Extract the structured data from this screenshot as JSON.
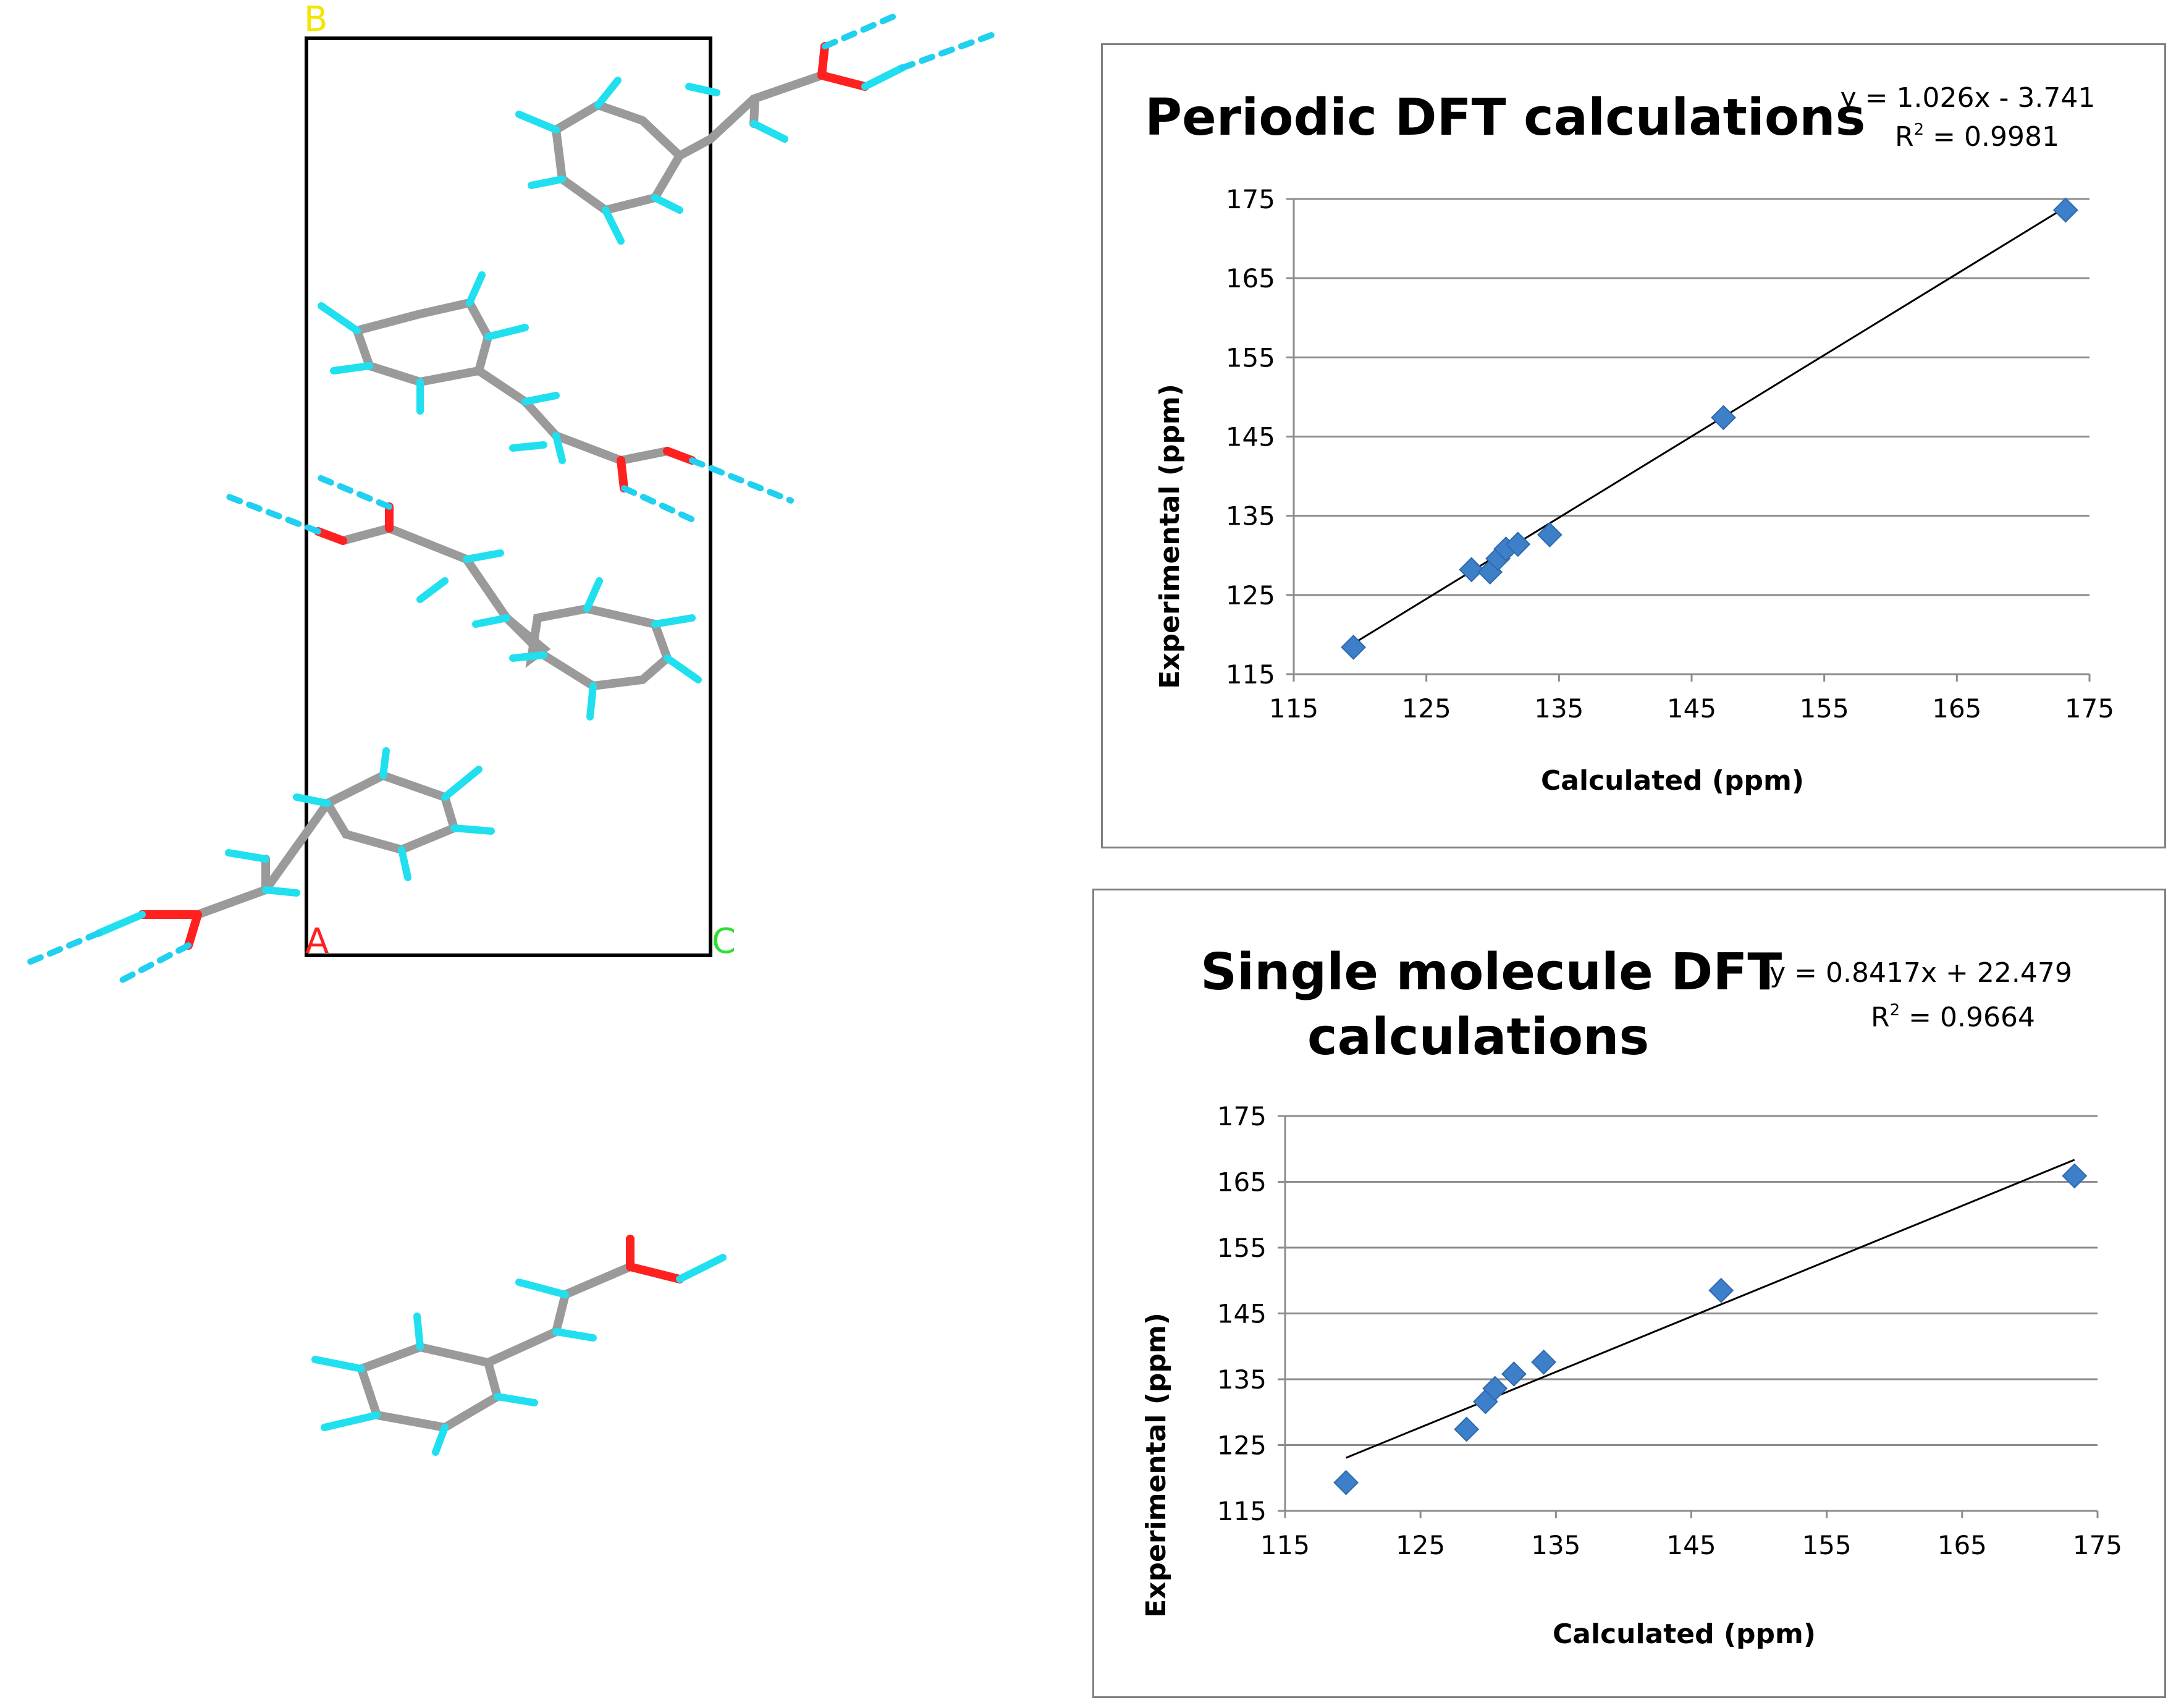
{
  "structure": {
    "axis_labels": {
      "b": "B",
      "a": "A",
      "c": "C"
    },
    "colors": {
      "carbon": "#999999",
      "hydrogen": "#20e0f0",
      "oxygen": "#ff2020",
      "hbond": "#20d0f0",
      "cell": "#000000",
      "b_label": "#f2e600",
      "a_label": "#ff2020",
      "c_label": "#30e030"
    }
  },
  "chart_data": [
    {
      "type": "scatter",
      "title": "Periodic DFT calculations",
      "equation": "y = 1.026x - 3.741",
      "r2_prefix": "R",
      "r2_sup": "2",
      "r2_suffix": " = 0.9981",
      "xlabel": "Calculated (ppm)",
      "ylabel": "Experimental (ppm)",
      "xlim": [
        115,
        175
      ],
      "ylim": [
        115,
        175
      ],
      "xticks": [
        "115",
        "125",
        "135",
        "145",
        "155",
        "165",
        "175"
      ],
      "yticks": [
        "115",
        "125",
        "135",
        "145",
        "155",
        "165",
        "175"
      ],
      "marker_color": "#3d7fc9",
      "points": [
        {
          "x": 119.5,
          "y": 118.4
        },
        {
          "x": 128.4,
          "y": 128.2
        },
        {
          "x": 129.8,
          "y": 127.9
        },
        {
          "x": 130.4,
          "y": 129.6
        },
        {
          "x": 131.0,
          "y": 130.8
        },
        {
          "x": 131.9,
          "y": 131.4
        },
        {
          "x": 134.3,
          "y": 132.6
        },
        {
          "x": 147.4,
          "y": 147.4
        },
        {
          "x": 173.2,
          "y": 173.6
        }
      ],
      "trendline": {
        "slope": 1.026,
        "intercept": -3.741,
        "x_from": 119.5,
        "x_to": 173.2
      }
    },
    {
      "type": "scatter",
      "title": "Single molecule DFT",
      "title_line2": "calculations",
      "equation": "y = 0.8417x + 22.479",
      "r2_prefix": "R",
      "r2_sup": "2",
      "r2_suffix": " = 0.9664",
      "xlabel": "Calculated (ppm)",
      "ylabel": "Experimental (ppm)",
      "xlim": [
        115,
        175
      ],
      "ylim": [
        115,
        175
      ],
      "xticks": [
        "115",
        "125",
        "135",
        "145",
        "155",
        "165",
        "175"
      ],
      "yticks": [
        "115",
        "125",
        "135",
        "145",
        "155",
        "165",
        "175"
      ],
      "marker_color": "#3d7fc9",
      "points": [
        {
          "x": 119.5,
          "y": 119.3
        },
        {
          "x": 128.4,
          "y": 127.4
        },
        {
          "x": 129.8,
          "y": 131.6
        },
        {
          "x": 130.5,
          "y": 133.6
        },
        {
          "x": 131.9,
          "y": 135.8
        },
        {
          "x": 134.1,
          "y": 137.6
        },
        {
          "x": 147.2,
          "y": 148.5
        },
        {
          "x": 173.3,
          "y": 165.9
        }
      ],
      "trendline": {
        "slope": 0.8417,
        "intercept": 22.479,
        "x_from": 119.5,
        "x_to": 173.3
      }
    }
  ]
}
